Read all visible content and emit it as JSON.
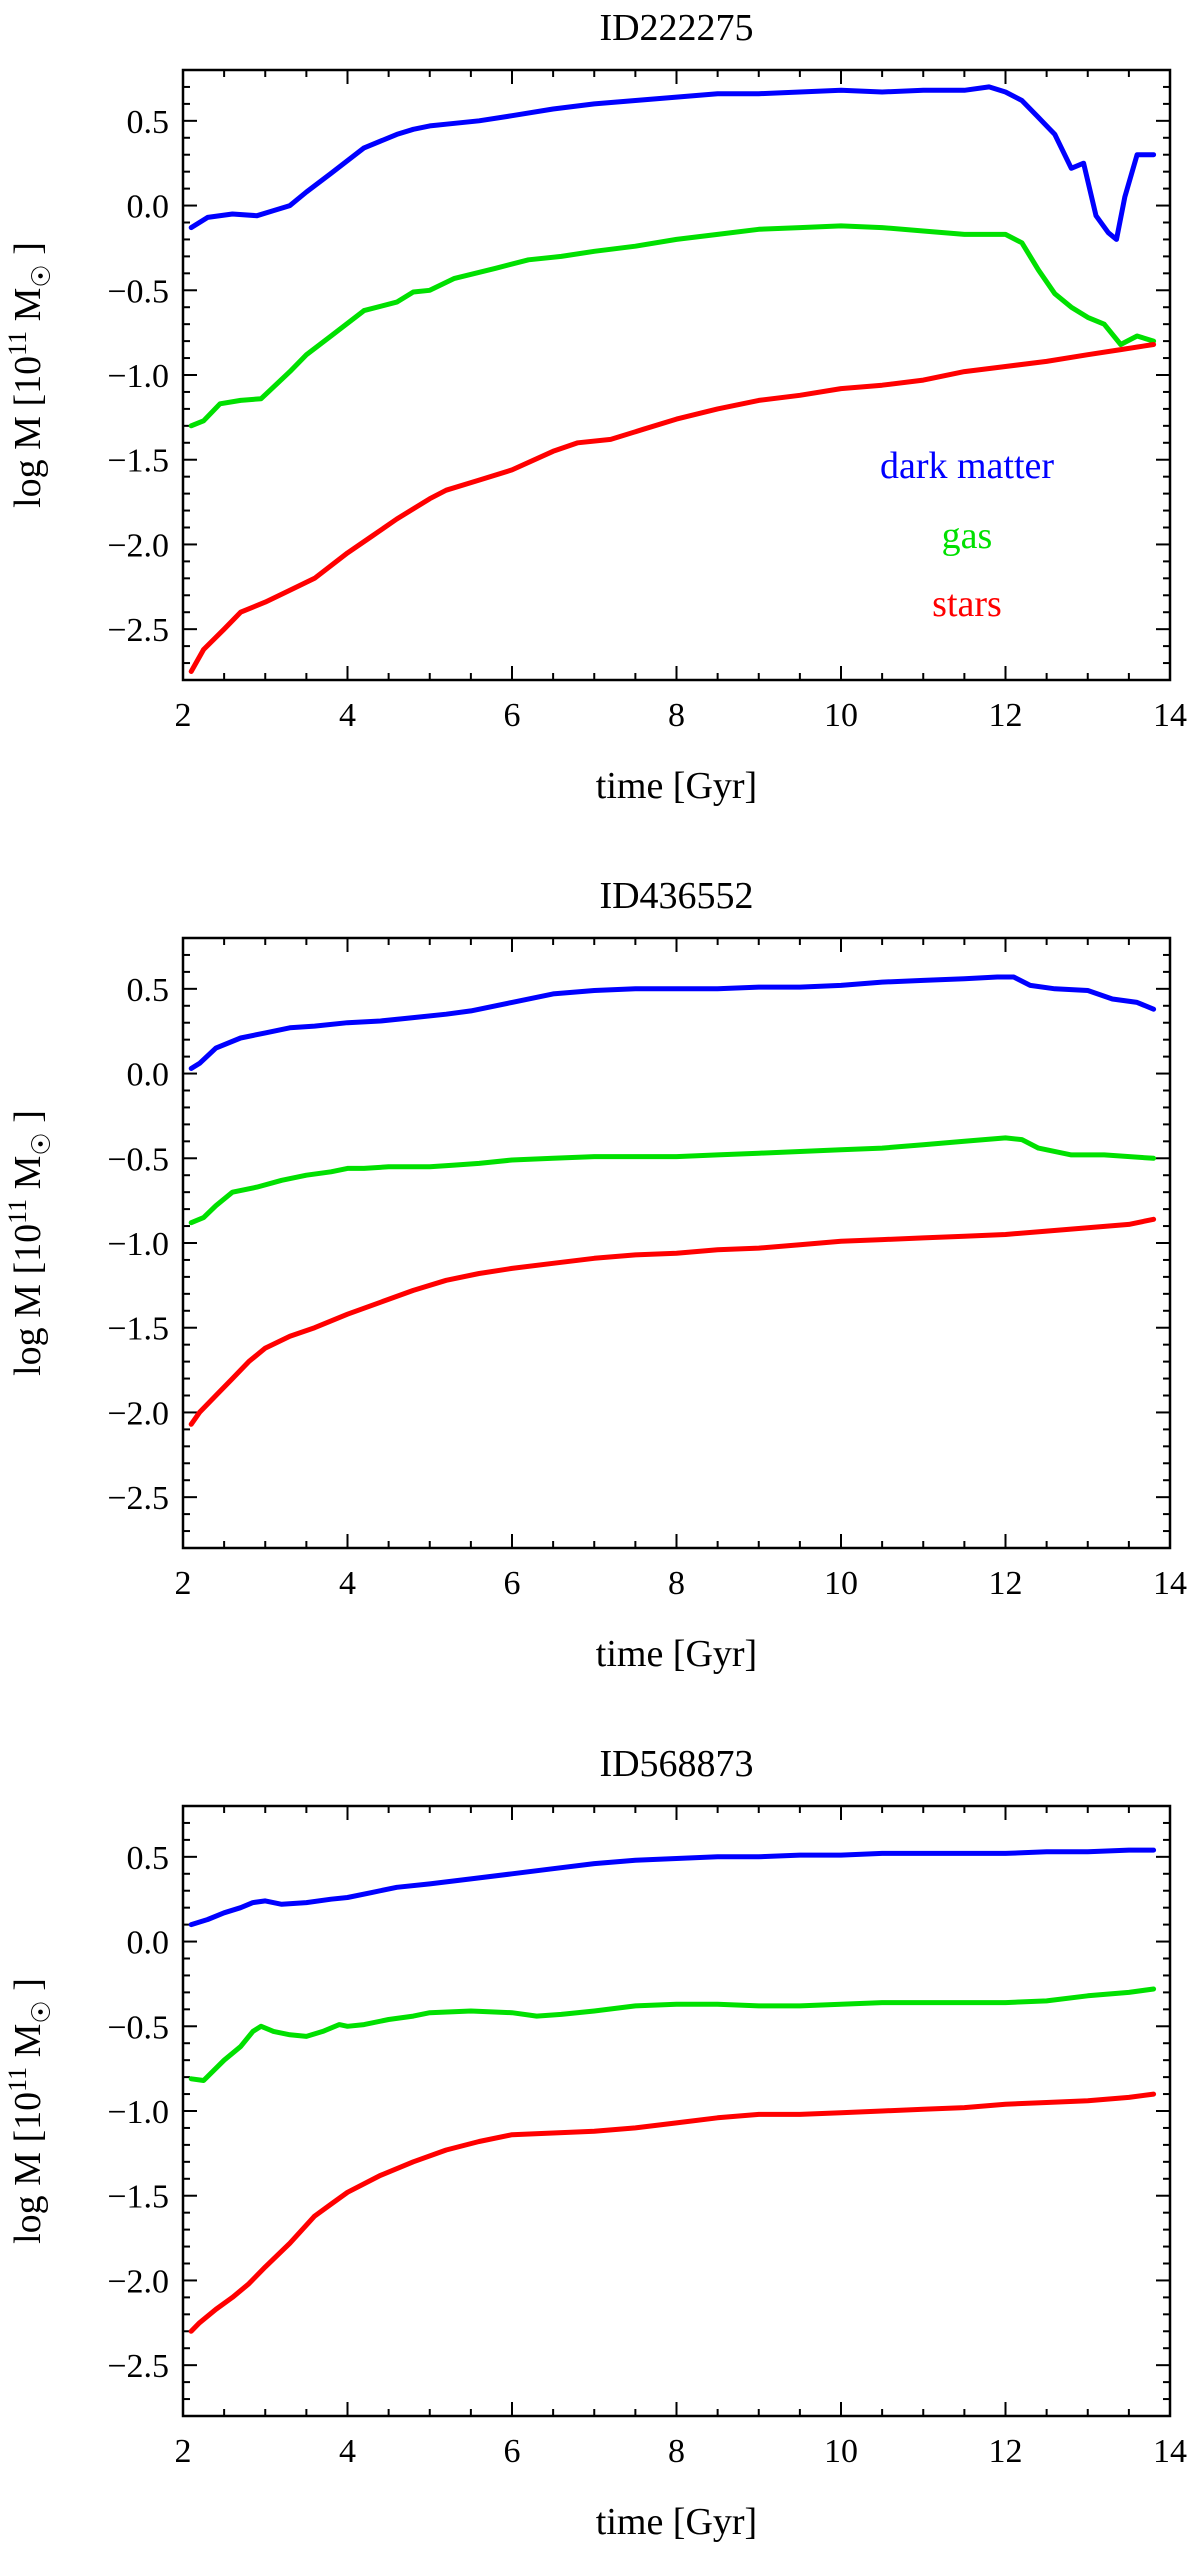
{
  "chart_data": [
    {
      "type": "line",
      "title": "ID222275",
      "xlabel": "time [Gyr]",
      "ylabel": "log M [10^11 M_sun]",
      "ylabel_parts": {
        "prefix": "log M [10",
        "exp": "11",
        "unit": " M",
        "sub": "☉",
        "suffix": " ]"
      },
      "xlim": [
        2,
        14
      ],
      "ylim": [
        -2.8,
        0.8
      ],
      "xticks": [
        2,
        4,
        6,
        8,
        10,
        12,
        14
      ],
      "yticks": [
        0.5,
        0.0,
        -0.5,
        -1.0,
        -1.5,
        -2.0,
        -2.5
      ],
      "xtick_labels": [
        "2",
        "4",
        "6",
        "8",
        "10",
        "12",
        "14"
      ],
      "ytick_labels": [
        "0.5",
        "0.0",
        "−0.5",
        "−1.0",
        "−1.5",
        "−2.0",
        "−2.5"
      ],
      "legend": {
        "placement": "center-right",
        "entries": [
          "dark matter",
          "gas",
          "stars"
        ]
      },
      "series": [
        {
          "name": "dark matter",
          "color": "#0000ff",
          "x": [
            2.1,
            2.3,
            2.6,
            2.9,
            3.1,
            3.3,
            3.5,
            3.8,
            4.2,
            4.6,
            4.8,
            5.0,
            5.2,
            5.6,
            6.0,
            6.5,
            7.0,
            7.5,
            8.0,
            8.5,
            9.0,
            9.5,
            10.0,
            10.5,
            11.0,
            11.5,
            11.8,
            12.0,
            12.2,
            12.4,
            12.6,
            12.8,
            12.95,
            13.1,
            13.25,
            13.35,
            13.45,
            13.6,
            13.8
          ],
          "y": [
            -0.13,
            -0.07,
            -0.05,
            -0.06,
            -0.03,
            0.0,
            0.08,
            0.19,
            0.34,
            0.42,
            0.45,
            0.47,
            0.48,
            0.5,
            0.53,
            0.57,
            0.6,
            0.62,
            0.64,
            0.66,
            0.66,
            0.67,
            0.68,
            0.67,
            0.68,
            0.68,
            0.7,
            0.67,
            0.62,
            0.52,
            0.42,
            0.22,
            0.25,
            -0.06,
            -0.16,
            -0.2,
            0.05,
            0.3,
            0.3
          ]
        },
        {
          "name": "gas",
          "color": "#00e000",
          "x": [
            2.1,
            2.25,
            2.45,
            2.7,
            2.95,
            3.3,
            3.5,
            3.8,
            4.2,
            4.6,
            4.8,
            5.0,
            5.3,
            5.8,
            6.2,
            6.6,
            7.0,
            7.5,
            8.0,
            8.5,
            9.0,
            9.5,
            10.0,
            10.5,
            11.0,
            11.5,
            12.0,
            12.2,
            12.4,
            12.6,
            12.8,
            13.0,
            13.2,
            13.4,
            13.6,
            13.8
          ],
          "y": [
            -1.3,
            -1.27,
            -1.17,
            -1.15,
            -1.14,
            -0.98,
            -0.88,
            -0.77,
            -0.62,
            -0.57,
            -0.51,
            -0.5,
            -0.43,
            -0.37,
            -0.32,
            -0.3,
            -0.27,
            -0.24,
            -0.2,
            -0.17,
            -0.14,
            -0.13,
            -0.12,
            -0.13,
            -0.15,
            -0.17,
            -0.17,
            -0.22,
            -0.38,
            -0.52,
            -0.6,
            -0.66,
            -0.7,
            -0.82,
            -0.77,
            -0.8
          ]
        },
        {
          "name": "stars",
          "color": "#ff0000",
          "x": [
            2.1,
            2.25,
            2.5,
            2.7,
            3.0,
            3.3,
            3.6,
            4.0,
            4.3,
            4.6,
            5.0,
            5.2,
            5.6,
            6.0,
            6.5,
            6.8,
            7.2,
            7.6,
            8.0,
            8.5,
            9.0,
            9.5,
            10.0,
            10.5,
            11.0,
            11.5,
            12.0,
            12.5,
            13.0,
            13.4,
            13.8
          ],
          "y": [
            -2.75,
            -2.62,
            -2.5,
            -2.4,
            -2.34,
            -2.27,
            -2.2,
            -2.05,
            -1.95,
            -1.85,
            -1.73,
            -1.68,
            -1.62,
            -1.56,
            -1.45,
            -1.4,
            -1.38,
            -1.32,
            -1.26,
            -1.2,
            -1.15,
            -1.12,
            -1.08,
            -1.06,
            -1.03,
            -0.98,
            -0.95,
            -0.92,
            -0.88,
            -0.85,
            -0.82
          ]
        }
      ]
    },
    {
      "type": "line",
      "title": "ID436552",
      "xlabel": "time [Gyr]",
      "ylabel": "log M [10^11 M_sun]",
      "ylabel_parts": {
        "prefix": "log M [10",
        "exp": "11",
        "unit": " M",
        "sub": "☉",
        "suffix": " ]"
      },
      "xlim": [
        2,
        14
      ],
      "ylim": [
        -2.8,
        0.8
      ],
      "xticks": [
        2,
        4,
        6,
        8,
        10,
        12,
        14
      ],
      "yticks": [
        0.5,
        0.0,
        -0.5,
        -1.0,
        -1.5,
        -2.0,
        -2.5
      ],
      "xtick_labels": [
        "2",
        "4",
        "6",
        "8",
        "10",
        "12",
        "14"
      ],
      "ytick_labels": [
        "0.5",
        "0.0",
        "−0.5",
        "−1.0",
        "−1.5",
        "−2.0",
        "−2.5"
      ],
      "series": [
        {
          "name": "dark matter",
          "color": "#0000ff",
          "x": [
            2.1,
            2.2,
            2.4,
            2.7,
            3.0,
            3.3,
            3.6,
            4.0,
            4.4,
            4.8,
            5.2,
            5.5,
            6.0,
            6.5,
            7.0,
            7.5,
            8.0,
            8.5,
            9.0,
            9.5,
            10.0,
            10.5,
            11.0,
            11.5,
            11.9,
            12.1,
            12.3,
            12.6,
            13.0,
            13.3,
            13.6,
            13.8
          ],
          "y": [
            0.03,
            0.06,
            0.15,
            0.21,
            0.24,
            0.27,
            0.28,
            0.3,
            0.31,
            0.33,
            0.35,
            0.37,
            0.42,
            0.47,
            0.49,
            0.5,
            0.5,
            0.5,
            0.51,
            0.51,
            0.52,
            0.54,
            0.55,
            0.56,
            0.57,
            0.57,
            0.52,
            0.5,
            0.49,
            0.44,
            0.42,
            0.38
          ]
        },
        {
          "name": "gas",
          "color": "#00e000",
          "x": [
            2.1,
            2.25,
            2.4,
            2.6,
            2.9,
            3.2,
            3.5,
            3.8,
            4.0,
            4.2,
            4.5,
            4.8,
            5.0,
            5.3,
            5.6,
            6.0,
            6.5,
            7.0,
            7.5,
            8.0,
            8.5,
            9.0,
            9.5,
            10.0,
            10.5,
            11.0,
            11.5,
            12.0,
            12.2,
            12.4,
            12.8,
            13.2,
            13.8
          ],
          "y": [
            -0.88,
            -0.85,
            -0.78,
            -0.7,
            -0.67,
            -0.63,
            -0.6,
            -0.58,
            -0.56,
            -0.56,
            -0.55,
            -0.55,
            -0.55,
            -0.54,
            -0.53,
            -0.51,
            -0.5,
            -0.49,
            -0.49,
            -0.49,
            -0.48,
            -0.47,
            -0.46,
            -0.45,
            -0.44,
            -0.42,
            -0.4,
            -0.38,
            -0.39,
            -0.44,
            -0.48,
            -0.48,
            -0.5
          ]
        },
        {
          "name": "stars",
          "color": "#ff0000",
          "x": [
            2.1,
            2.2,
            2.4,
            2.6,
            2.8,
            3.0,
            3.3,
            3.6,
            4.0,
            4.4,
            4.8,
            5.2,
            5.6,
            6.0,
            6.5,
            7.0,
            7.5,
            8.0,
            8.5,
            9.0,
            9.5,
            10.0,
            10.5,
            11.0,
            11.5,
            12.0,
            12.5,
            13.0,
            13.5,
            13.8
          ],
          "y": [
            -2.07,
            -2.0,
            -1.9,
            -1.8,
            -1.7,
            -1.62,
            -1.55,
            -1.5,
            -1.42,
            -1.35,
            -1.28,
            -1.22,
            -1.18,
            -1.15,
            -1.12,
            -1.09,
            -1.07,
            -1.06,
            -1.04,
            -1.03,
            -1.01,
            -0.99,
            -0.98,
            -0.97,
            -0.96,
            -0.95,
            -0.93,
            -0.91,
            -0.89,
            -0.86
          ]
        }
      ]
    },
    {
      "type": "line",
      "title": "ID568873",
      "xlabel": "time [Gyr]",
      "ylabel": "log M [10^11 M_sun]",
      "ylabel_parts": {
        "prefix": "log M [10",
        "exp": "11",
        "unit": " M",
        "sub": "☉",
        "suffix": " ]"
      },
      "xlim": [
        2,
        14
      ],
      "ylim": [
        -2.8,
        0.8
      ],
      "xticks": [
        2,
        4,
        6,
        8,
        10,
        12,
        14
      ],
      "yticks": [
        0.5,
        0.0,
        -0.5,
        -1.0,
        -1.5,
        -2.0,
        -2.5
      ],
      "xtick_labels": [
        "2",
        "4",
        "6",
        "8",
        "10",
        "12",
        "14"
      ],
      "ytick_labels": [
        "0.5",
        "0.0",
        "−0.5",
        "−1.0",
        "−1.5",
        "−2.0",
        "−2.5"
      ],
      "series": [
        {
          "name": "dark matter",
          "color": "#0000ff",
          "x": [
            2.1,
            2.3,
            2.5,
            2.7,
            2.85,
            3.0,
            3.2,
            3.5,
            3.8,
            4.0,
            4.3,
            4.6,
            5.0,
            5.5,
            6.0,
            6.5,
            7.0,
            7.5,
            8.0,
            8.5,
            9.0,
            9.5,
            10.0,
            10.5,
            11.0,
            11.5,
            12.0,
            12.5,
            13.0,
            13.5,
            13.8
          ],
          "y": [
            0.1,
            0.13,
            0.17,
            0.2,
            0.23,
            0.24,
            0.22,
            0.23,
            0.25,
            0.26,
            0.29,
            0.32,
            0.34,
            0.37,
            0.4,
            0.43,
            0.46,
            0.48,
            0.49,
            0.5,
            0.5,
            0.51,
            0.51,
            0.52,
            0.52,
            0.52,
            0.52,
            0.53,
            0.53,
            0.54,
            0.54
          ]
        },
        {
          "name": "gas",
          "color": "#00e000",
          "x": [
            2.1,
            2.25,
            2.5,
            2.7,
            2.85,
            2.95,
            3.1,
            3.3,
            3.5,
            3.7,
            3.9,
            4.0,
            4.2,
            4.5,
            4.8,
            5.0,
            5.5,
            6.0,
            6.3,
            6.6,
            7.0,
            7.5,
            8.0,
            8.5,
            9.0,
            9.5,
            10.0,
            10.5,
            11.0,
            11.5,
            12.0,
            12.5,
            13.0,
            13.5,
            13.8
          ],
          "y": [
            -0.81,
            -0.82,
            -0.7,
            -0.62,
            -0.53,
            -0.5,
            -0.53,
            -0.55,
            -0.56,
            -0.53,
            -0.49,
            -0.5,
            -0.49,
            -0.46,
            -0.44,
            -0.42,
            -0.41,
            -0.42,
            -0.44,
            -0.43,
            -0.41,
            -0.38,
            -0.37,
            -0.37,
            -0.38,
            -0.38,
            -0.37,
            -0.36,
            -0.36,
            -0.36,
            -0.36,
            -0.35,
            -0.32,
            -0.3,
            -0.28
          ]
        },
        {
          "name": "stars",
          "color": "#ff0000",
          "x": [
            2.1,
            2.2,
            2.4,
            2.6,
            2.8,
            3.0,
            3.3,
            3.6,
            3.8,
            4.0,
            4.4,
            4.8,
            5.2,
            5.6,
            6.0,
            6.5,
            7.0,
            7.5,
            8.0,
            8.5,
            9.0,
            9.5,
            10.0,
            10.5,
            11.0,
            11.5,
            12.0,
            12.5,
            13.0,
            13.5,
            13.8
          ],
          "y": [
            -2.3,
            -2.25,
            -2.17,
            -2.1,
            -2.02,
            -1.92,
            -1.78,
            -1.62,
            -1.55,
            -1.48,
            -1.38,
            -1.3,
            -1.23,
            -1.18,
            -1.14,
            -1.13,
            -1.12,
            -1.1,
            -1.07,
            -1.04,
            -1.02,
            -1.02,
            -1.01,
            -1.0,
            -0.99,
            -0.98,
            -0.96,
            -0.95,
            -0.94,
            -0.92,
            -0.9
          ]
        }
      ]
    }
  ]
}
